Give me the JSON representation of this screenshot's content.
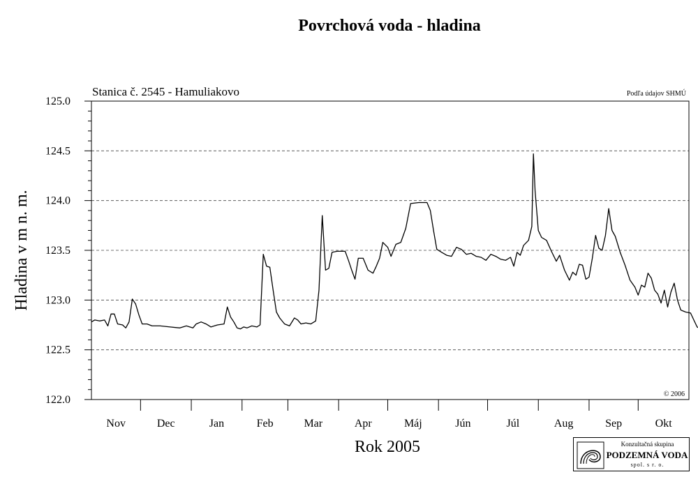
{
  "chart_data": {
    "type": "line",
    "title": "Povrchová voda - hladina",
    "subtitle": "Stanica č. 2545 - Hamuliakovo",
    "source_note": "Podľa údajov SHMÚ",
    "copyright": "© 2006",
    "ylabel": "Hladina v m n. m.",
    "xlabel": "Rok 2005",
    "ylim": [
      122.0,
      125.0
    ],
    "yticks": [
      "125.0",
      "124.5",
      "124.0",
      "123.5",
      "123.0",
      "122.5",
      "122.0"
    ],
    "grid": true,
    "months": [
      "Nov",
      "Dec",
      "Jan",
      "Feb",
      "Mar",
      "Apr",
      "Máj",
      "Jún",
      "Júl",
      "Aug",
      "Sep",
      "Okt"
    ],
    "month_lengths": [
      30,
      31,
      31,
      28,
      31,
      30,
      31,
      30,
      31,
      31,
      30,
      31
    ],
    "x_unit": "day since 1 Nov 2004",
    "series": [
      {
        "name": "",
        "points": [
          [
            0,
            122.78
          ],
          [
            2,
            122.8
          ],
          [
            5,
            122.79
          ],
          [
            8,
            122.8
          ],
          [
            10,
            122.74
          ],
          [
            12,
            122.86
          ],
          [
            14,
            122.86
          ],
          [
            16,
            122.76
          ],
          [
            19,
            122.75
          ],
          [
            21,
            122.72
          ],
          [
            23,
            122.78
          ],
          [
            25,
            123.01
          ],
          [
            27,
            122.96
          ],
          [
            29,
            122.85
          ],
          [
            31,
            122.76
          ],
          [
            34,
            122.76
          ],
          [
            37,
            122.74
          ],
          [
            42,
            122.74
          ],
          [
            48,
            122.73
          ],
          [
            54,
            122.72
          ],
          [
            58,
            122.74
          ],
          [
            62,
            122.72
          ],
          [
            64,
            122.76
          ],
          [
            67,
            122.78
          ],
          [
            70,
            122.76
          ],
          [
            73,
            122.73
          ],
          [
            77,
            122.75
          ],
          [
            81,
            122.76
          ],
          [
            83,
            122.93
          ],
          [
            85,
            122.83
          ],
          [
            87,
            122.78
          ],
          [
            89,
            122.72
          ],
          [
            91,
            122.71
          ],
          [
            93,
            122.73
          ],
          [
            95,
            122.72
          ],
          [
            98,
            122.74
          ],
          [
            101,
            122.73
          ],
          [
            103,
            122.75
          ],
          [
            105,
            123.46
          ],
          [
            107,
            123.34
          ],
          [
            109,
            123.33
          ],
          [
            111,
            123.1
          ],
          [
            113,
            122.88
          ],
          [
            115,
            122.82
          ],
          [
            118,
            122.76
          ],
          [
            121,
            122.74
          ],
          [
            124,
            122.82
          ],
          [
            126,
            122.8
          ],
          [
            128,
            122.76
          ],
          [
            131,
            122.77
          ],
          [
            134,
            122.76
          ],
          [
            137,
            122.79
          ],
          [
            139,
            123.1
          ],
          [
            141,
            123.85
          ],
          [
            143,
            123.3
          ],
          [
            145,
            123.32
          ],
          [
            147,
            123.48
          ],
          [
            150,
            123.49
          ],
          [
            155,
            123.49
          ],
          [
            157,
            123.4
          ],
          [
            159,
            123.3
          ],
          [
            161,
            123.21
          ],
          [
            163,
            123.42
          ],
          [
            166,
            123.42
          ],
          [
            169,
            123.3
          ],
          [
            172,
            123.27
          ],
          [
            174,
            123.34
          ],
          [
            176,
            123.42
          ],
          [
            178,
            123.58
          ],
          [
            181,
            123.53
          ],
          [
            183,
            123.44
          ],
          [
            186,
            123.56
          ],
          [
            189,
            123.58
          ],
          [
            192,
            123.72
          ],
          [
            195,
            123.97
          ],
          [
            200,
            123.98
          ],
          [
            205,
            123.98
          ],
          [
            207,
            123.9
          ],
          [
            209,
            123.7
          ],
          [
            211,
            123.51
          ],
          [
            214,
            123.48
          ],
          [
            217,
            123.45
          ],
          [
            220,
            123.44
          ],
          [
            223,
            123.53
          ],
          [
            226,
            123.51
          ],
          [
            229,
            123.46
          ],
          [
            232,
            123.47
          ],
          [
            235,
            123.44
          ],
          [
            238,
            123.43
          ],
          [
            241,
            123.4
          ],
          [
            244,
            123.46
          ],
          [
            247,
            123.44
          ],
          [
            250,
            123.41
          ],
          [
            253,
            123.4
          ],
          [
            256,
            123.43
          ],
          [
            258,
            123.34
          ],
          [
            260,
            123.48
          ],
          [
            262,
            123.45
          ],
          [
            264,
            123.55
          ],
          [
            267,
            123.6
          ],
          [
            269,
            123.74
          ],
          [
            270,
            124.47
          ],
          [
            271,
            124.1
          ],
          [
            273,
            123.7
          ],
          [
            275,
            123.63
          ],
          [
            278,
            123.6
          ],
          [
            281,
            123.49
          ],
          [
            284,
            123.39
          ],
          [
            286,
            123.45
          ],
          [
            289,
            123.3
          ],
          [
            292,
            123.2
          ],
          [
            294,
            123.28
          ],
          [
            296,
            123.25
          ],
          [
            298,
            123.36
          ],
          [
            300,
            123.35
          ],
          [
            302,
            123.21
          ],
          [
            304,
            123.23
          ],
          [
            306,
            123.42
          ],
          [
            308,
            123.65
          ],
          [
            310,
            123.52
          ],
          [
            312,
            123.5
          ],
          [
            314,
            123.65
          ],
          [
            316,
            123.92
          ],
          [
            318,
            123.7
          ],
          [
            320,
            123.64
          ],
          [
            323,
            123.48
          ],
          [
            326,
            123.35
          ],
          [
            329,
            123.2
          ],
          [
            332,
            123.13
          ],
          [
            334,
            123.05
          ],
          [
            336,
            123.15
          ],
          [
            338,
            123.13
          ],
          [
            340,
            123.27
          ],
          [
            342,
            123.22
          ],
          [
            344,
            123.1
          ],
          [
            346,
            123.06
          ],
          [
            348,
            122.97
          ],
          [
            350,
            123.1
          ],
          [
            352,
            122.93
          ],
          [
            354,
            123.08
          ],
          [
            356,
            123.17
          ],
          [
            358,
            123.0
          ],
          [
            360,
            122.9
          ],
          [
            363,
            122.88
          ],
          [
            366,
            122.87
          ],
          [
            368,
            122.8
          ],
          [
            370,
            122.73
          ],
          [
            372,
            122.71
          ],
          [
            374,
            122.72
          ],
          [
            376,
            122.75
          ],
          [
            378,
            122.74
          ]
        ]
      }
    ]
  },
  "logo": {
    "line1": "Konzultačná skupina",
    "line2": "PODZEMNÁ VODA",
    "line3": "spol. s r. o."
  }
}
